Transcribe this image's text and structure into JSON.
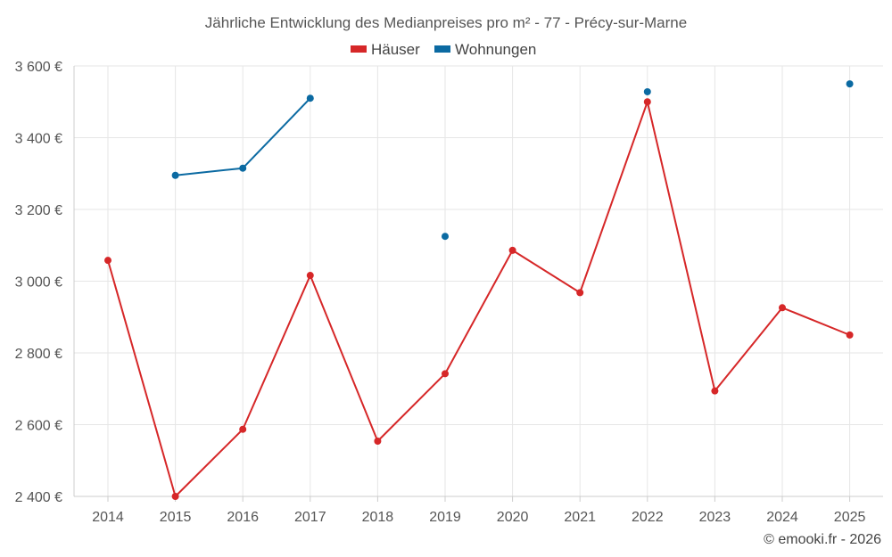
{
  "chart_data": {
    "type": "line",
    "title": "Jährliche Entwicklung des Medianpreises pro m² - 77 - Précy-sur-Marne",
    "categories": [
      "2014",
      "2015",
      "2016",
      "2017",
      "2018",
      "2019",
      "2020",
      "2021",
      "2022",
      "2023",
      "2024",
      "2025"
    ],
    "series": [
      {
        "name": "Häuser",
        "color": "#d62728",
        "values": [
          3058,
          2400,
          2587,
          3016,
          2554,
          2742,
          3086,
          2968,
          3500,
          2694,
          2926,
          2850
        ]
      },
      {
        "name": "Wohnungen",
        "color": "#0b6aa2",
        "values": [
          null,
          3295,
          3315,
          3510,
          null,
          3125,
          null,
          null,
          3528,
          null,
          null,
          3550
        ]
      }
    ],
    "ylim": [
      2400,
      3600
    ],
    "yticks": [
      2400,
      2600,
      2800,
      3000,
      3200,
      3400,
      3600
    ],
    "ytick_labels": [
      "2 400 €",
      "2 600 €",
      "2 800 €",
      "3 000 €",
      "3 200 €",
      "3 400 €",
      "3 600 €"
    ],
    "xlabel": "",
    "ylabel": "",
    "grid": true,
    "legend_position": "top-center"
  },
  "credit": "© emooki.fr - 2026"
}
